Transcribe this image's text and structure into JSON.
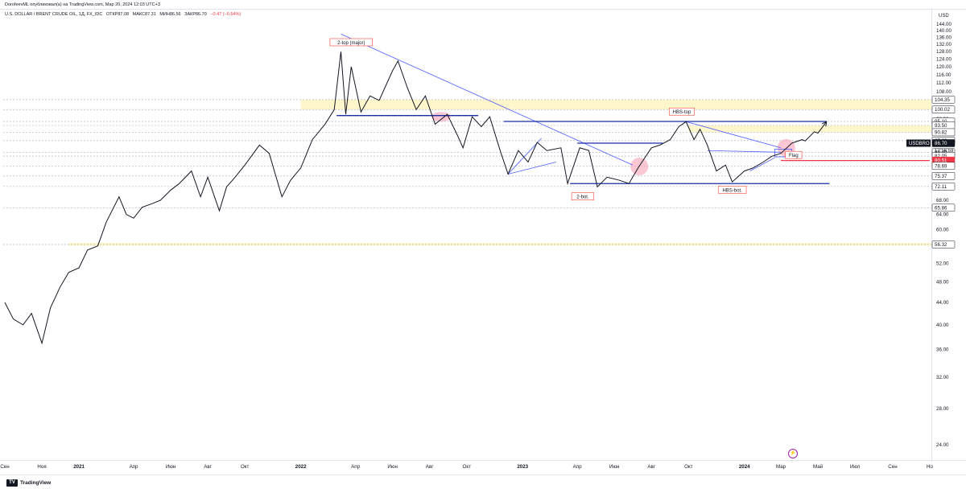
{
  "header": {
    "publisher_line": "DorofeevML опубликовал(а) на TradingView.com, Мар 20, 2024 12:03 UTC+3",
    "symbol_line": "U.S. DOLLAR / BRENT CRUDE OIL, 1Д, FX_IDC",
    "ohlc": {
      "open": "ОТКР87.08",
      "high": "МАКС87.31",
      "low": "МИН86.56",
      "close": "ЗАКР86.70",
      "change": "−0.47 (−0.54%)"
    }
  },
  "footer": {
    "brand": "TradingView",
    "logo_mark": "TV"
  },
  "currency_label": "USD",
  "alert_icon": "lightning-icon",
  "colors": {
    "price_line": "#131722",
    "trend_line": "#4a5cff",
    "level_line": "#1a2ea6",
    "red_level": "#f23645",
    "zone_fill": "#fff6cc",
    "dotted": "#b2b5be",
    "highlight": "#f7a1b5",
    "tag_border": "#f44336",
    "last_price_bg": "#131722"
  },
  "chart_data": {
    "type": "line",
    "symbol": "USDBRO",
    "y_scale": "log",
    "ylim": [
      22.5,
      152
    ],
    "x_range": [
      "2020-09-01",
      "2024-11-01"
    ],
    "y_ticks": [
      24,
      28,
      32,
      36,
      40,
      44,
      48,
      52,
      56,
      60,
      64,
      68,
      72,
      76,
      80,
      84,
      88,
      92,
      96,
      100,
      104,
      108,
      112,
      116,
      120,
      124,
      128,
      132,
      136,
      140,
      144
    ],
    "y_tick_labels": [
      "24.00",
      "28.00",
      "32.00",
      "36.00",
      "40.00",
      "44.00",
      "48.00",
      "52.00",
      "56.00",
      "60.00",
      "64.00",
      "68.00",
      "72.00",
      "76.00",
      "80.00",
      "84.00",
      "88.00",
      "92.00",
      "96.00",
      "100.00",
      "104.00",
      "108.00",
      "112.00",
      "116.00",
      "120.00",
      "124.00",
      "128.00",
      "132.00",
      "136.00",
      "140.00",
      "144.00"
    ],
    "x_ticks": [
      {
        "date": "2020-09-01",
        "label": "Сен"
      },
      {
        "date": "2020-11-01",
        "label": "Ноя"
      },
      {
        "date": "2021-01-01",
        "label": "2021"
      },
      {
        "date": "2021-04-01",
        "label": "Апр"
      },
      {
        "date": "2021-06-01",
        "label": "Июн"
      },
      {
        "date": "2021-08-01",
        "label": "Авг"
      },
      {
        "date": "2021-10-01",
        "label": "Окт"
      },
      {
        "date": "2022-01-01",
        "label": "2022"
      },
      {
        "date": "2022-04-01",
        "label": "Апр"
      },
      {
        "date": "2022-06-01",
        "label": "Июн"
      },
      {
        "date": "2022-08-01",
        "label": "Авг"
      },
      {
        "date": "2022-10-01",
        "label": "Окт"
      },
      {
        "date": "2023-01-01",
        "label": "2023"
      },
      {
        "date": "2023-04-01",
        "label": "Апр"
      },
      {
        "date": "2023-06-01",
        "label": "Июн"
      },
      {
        "date": "2023-08-01",
        "label": "Авг"
      },
      {
        "date": "2023-10-01",
        "label": "Окт"
      },
      {
        "date": "2024-01-01",
        "label": "2024"
      },
      {
        "date": "2024-03-01",
        "label": "Мар"
      },
      {
        "date": "2024-05-01",
        "label": "Май"
      },
      {
        "date": "2024-07-01",
        "label": "Июл"
      },
      {
        "date": "2024-09-01",
        "label": "Сен"
      },
      {
        "date": "2024-11-01",
        "label": "Но"
      }
    ],
    "series": [
      {
        "values": [
          [
            "2020-09-01",
            44
          ],
          [
            "2020-09-15",
            41
          ],
          [
            "2020-10-01",
            40
          ],
          [
            "2020-10-15",
            42
          ],
          [
            "2020-11-01",
            37
          ],
          [
            "2020-11-15",
            43
          ],
          [
            "2020-12-01",
            47
          ],
          [
            "2020-12-15",
            50
          ],
          [
            "2021-01-01",
            51
          ],
          [
            "2021-01-15",
            55
          ],
          [
            "2021-02-01",
            56
          ],
          [
            "2021-02-15",
            62
          ],
          [
            "2021-03-08",
            69
          ],
          [
            "2021-03-20",
            64
          ],
          [
            "2021-04-01",
            63
          ],
          [
            "2021-04-15",
            66
          ],
          [
            "2021-05-01",
            67
          ],
          [
            "2021-05-15",
            68
          ],
          [
            "2021-06-01",
            71
          ],
          [
            "2021-06-15",
            73
          ],
          [
            "2021-07-05",
            77
          ],
          [
            "2021-07-20",
            69
          ],
          [
            "2021-08-01",
            75
          ],
          [
            "2021-08-20",
            65
          ],
          [
            "2021-09-01",
            72
          ],
          [
            "2021-09-15",
            75
          ],
          [
            "2021-10-01",
            79
          ],
          [
            "2021-10-25",
            86
          ],
          [
            "2021-11-10",
            83
          ],
          [
            "2021-12-01",
            69
          ],
          [
            "2021-12-15",
            74
          ],
          [
            "2022-01-01",
            78
          ],
          [
            "2022-01-20",
            88
          ],
          [
            "2022-02-10",
            94
          ],
          [
            "2022-02-25",
            100
          ],
          [
            "2022-03-08",
            128
          ],
          [
            "2022-03-16",
            98
          ],
          [
            "2022-03-25",
            120
          ],
          [
            "2022-04-10",
            99
          ],
          [
            "2022-04-25",
            106
          ],
          [
            "2022-05-10",
            104
          ],
          [
            "2022-06-01",
            118
          ],
          [
            "2022-06-10",
            123
          ],
          [
            "2022-06-25",
            110
          ],
          [
            "2022-07-10",
            100
          ],
          [
            "2022-07-25",
            106
          ],
          [
            "2022-08-10",
            94
          ],
          [
            "2022-08-30",
            98
          ],
          [
            "2022-09-15",
            90
          ],
          [
            "2022-09-25",
            85
          ],
          [
            "2022-10-10",
            97
          ],
          [
            "2022-10-25",
            93
          ],
          [
            "2022-11-08",
            97
          ],
          [
            "2022-11-25",
            84
          ],
          [
            "2022-12-08",
            76
          ],
          [
            "2022-12-25",
            84
          ],
          [
            "2023-01-10",
            80
          ],
          [
            "2023-01-25",
            87
          ],
          [
            "2023-02-10",
            84
          ],
          [
            "2023-03-05",
            85
          ],
          [
            "2023-03-16",
            73
          ],
          [
            "2023-04-05",
            85
          ],
          [
            "2023-04-20",
            84
          ],
          [
            "2023-05-04",
            72
          ],
          [
            "2023-05-20",
            75
          ],
          [
            "2023-06-10",
            74
          ],
          [
            "2023-06-25",
            73
          ],
          [
            "2023-07-10",
            78
          ],
          [
            "2023-08-01",
            85
          ],
          [
            "2023-08-15",
            86
          ],
          [
            "2023-09-01",
            88
          ],
          [
            "2023-09-15",
            93
          ],
          [
            "2023-09-27",
            95
          ],
          [
            "2023-10-10",
            88
          ],
          [
            "2023-10-20",
            92
          ],
          [
            "2023-11-01",
            86
          ],
          [
            "2023-11-16",
            77
          ],
          [
            "2023-12-01",
            79
          ],
          [
            "2023-12-12",
            73.5
          ],
          [
            "2024-01-01",
            77
          ],
          [
            "2024-01-15",
            78
          ],
          [
            "2024-02-01",
            80
          ],
          [
            "2024-02-15",
            82
          ],
          [
            "2024-03-01",
            83
          ],
          [
            "2024-03-19",
            86.7
          ]
        ]
      }
    ],
    "projection": [
      [
        "2024-03-19",
        86.7
      ],
      [
        "2024-04-05",
        88
      ],
      [
        "2024-04-10",
        87.5
      ],
      [
        "2024-04-25",
        91
      ],
      [
        "2024-05-01",
        90.5
      ],
      [
        "2024-05-15",
        95
      ]
    ],
    "horizontal_lines": [
      {
        "price": 97.5,
        "from": "2022-03-01",
        "to": "2022-10-20",
        "style": "solid"
      },
      {
        "price": 95.1,
        "from": "2022-12-01",
        "to": "2024-05-15",
        "style": "solid"
      },
      {
        "price": 86.7,
        "from": "2023-04-01",
        "to": "2023-08-20",
        "style": "solid"
      },
      {
        "price": 80.51,
        "from": "2024-03-01",
        "to": "2024-11-01",
        "style": "red"
      },
      {
        "price": 73.0,
        "from": "2023-03-20",
        "to": "2024-05-20",
        "style": "solid"
      },
      {
        "price": 73.5,
        "from": "2022-12-01",
        "to": "2022-12-01",
        "style": "none"
      }
    ],
    "dotted_levels": [
      104.35,
      100.02,
      95.1,
      93.5,
      90.82,
      87.63,
      83.4,
      82.05,
      78.69,
      75.37,
      72.11,
      65.86,
      56.32
    ],
    "zones": [
      {
        "from_price": 100.02,
        "to_price": 104.35,
        "start": "2022-01-01"
      },
      {
        "from_price": 90.82,
        "to_price": 93.5,
        "start": "2023-10-01"
      },
      {
        "from_price": 56.0,
        "to_price": 56.7,
        "start": "2020-12-15"
      }
    ],
    "trend_lines": [
      {
        "p1": [
          "2022-03-08",
          138
        ],
        "p2": [
          "2023-07-01",
          79
        ]
      },
      {
        "p1": [
          "2023-09-27",
          95
        ],
        "p2": [
          "2024-03-01",
          85
        ]
      },
      {
        "p1": [
          "2023-11-01",
          84
        ],
        "p2": [
          "2024-03-01",
          83.4
        ]
      },
      {
        "p1": [
          "2022-12-08",
          76
        ],
        "p2": [
          "2023-02-01",
          88.5
        ]
      },
      {
        "p1": [
          "2022-12-08",
          76
        ],
        "p2": [
          "2023-02-25",
          80
        ]
      },
      {
        "p1": [
          "2024-01-10",
          77
        ],
        "p2": [
          "2024-02-20",
          81.5
        ]
      }
    ],
    "flag_box": {
      "from": "2024-02-20",
      "to": "2024-03-19",
      "low": 81.8,
      "high": 84.5
    },
    "highlights": [
      {
        "date": "2022-08-20",
        "price": 97,
        "kind": "ellipse"
      },
      {
        "date": "2023-07-12",
        "price": 78.5,
        "kind": "circle"
      },
      {
        "date": "2024-03-10",
        "price": 85,
        "kind": "circle"
      }
    ],
    "annotations": [
      {
        "text": "2-top (major)",
        "date": "2022-03-25",
        "price": 133
      },
      {
        "text": "HBS-top",
        "date": "2023-09-20",
        "price": 99
      },
      {
        "text": "2-bot.",
        "date": "2023-04-10",
        "price": 69
      },
      {
        "text": "HBS-bot.",
        "date": "2023-12-12",
        "price": 71
      },
      {
        "text": "Flag",
        "date": "2024-03-22",
        "price": 82.3
      }
    ],
    "price_labels": [
      {
        "value": "104.35",
        "price": 104.35,
        "style": "level"
      },
      {
        "value": "100.02",
        "price": 100.02,
        "style": "level"
      },
      {
        "value": "95.10",
        "price": 95.1,
        "style": "level"
      },
      {
        "value": "93.50",
        "price": 93.5,
        "style": "level"
      },
      {
        "value": "90.82",
        "price": 90.82,
        "style": "level"
      },
      {
        "value": "87.63",
        "price": 87.63,
        "style": "level"
      },
      {
        "value": "86.70",
        "price": 86.7,
        "style": "last"
      },
      {
        "value": "83.40",
        "price": 83.4,
        "style": "level"
      },
      {
        "value": "82.05",
        "price": 82.05,
        "style": "level"
      },
      {
        "value": "80.51",
        "price": 80.51,
        "style": "red"
      },
      {
        "value": "78.69",
        "price": 78.69,
        "style": "level"
      },
      {
        "value": "75.37",
        "price": 75.37,
        "style": "level"
      },
      {
        "value": "72.11",
        "price": 72.11,
        "style": "level"
      },
      {
        "value": "65.86",
        "price": 65.86,
        "style": "level"
      },
      {
        "value": "56.32",
        "price": 56.32,
        "style": "level"
      }
    ],
    "symbol_tag": "USDBRO",
    "countdown": "12:56:59",
    "grid": false
  }
}
